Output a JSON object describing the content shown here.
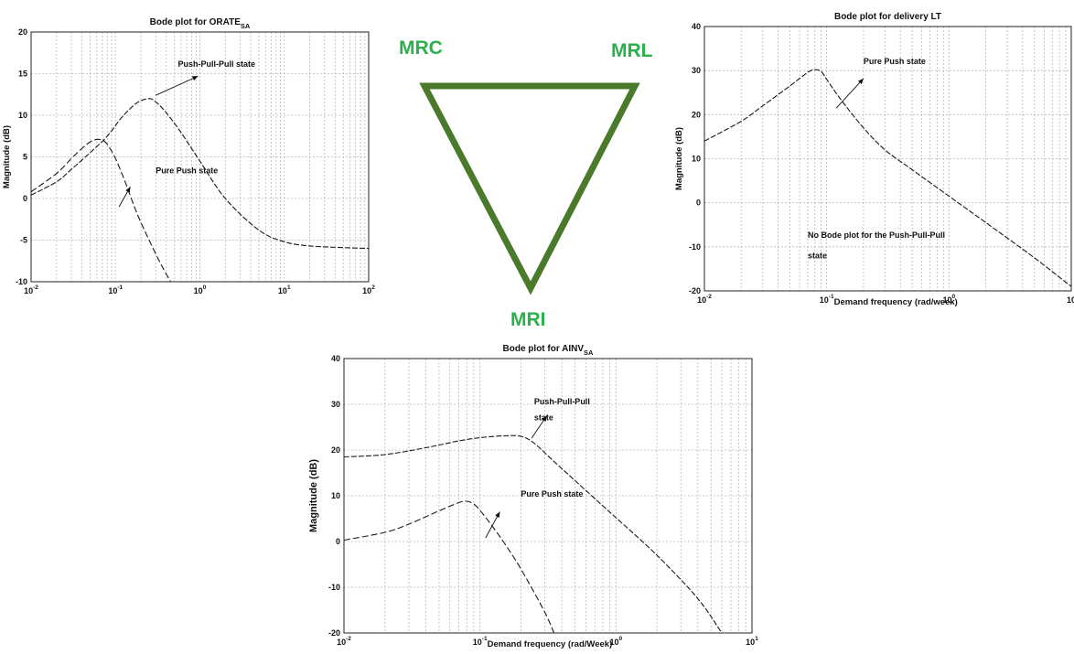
{
  "colors": {
    "triangle": "#4a7a2c",
    "label_green": "#2bb04b",
    "grid": "#b8b8b8",
    "curve": "#1a1a1a"
  },
  "labels": {
    "mrc": "MRC",
    "mrl": "MRL",
    "mri": "MRI"
  },
  "chart_data": [
    {
      "id": "orate",
      "type": "line",
      "x_scale": "log",
      "title": "Bode plot for ORATE",
      "title_sub": "SA",
      "ylabel": "Magnitude (dB)",
      "xlabel": "",
      "xlim": [
        0.01,
        100
      ],
      "ylim": [
        -10,
        20
      ],
      "yticks": [
        -10,
        -5,
        0,
        5,
        10,
        15,
        20
      ],
      "xticks": [
        {
          "base": "10",
          "exp": "-2"
        },
        {
          "base": "10",
          "exp": "-1"
        },
        {
          "base": "10",
          "exp": "0"
        },
        {
          "base": "10",
          "exp": "1"
        },
        {
          "base": "10",
          "exp": "2"
        }
      ],
      "grid": true,
      "series": [
        {
          "name": "Push-Pull-Pull state",
          "x": [
            0.01,
            0.02,
            0.03,
            0.05,
            0.08,
            0.12,
            0.18,
            0.25,
            0.3,
            0.4,
            0.6,
            1,
            2,
            5,
            10,
            20,
            50,
            100
          ],
          "y": [
            0.4,
            2,
            3.5,
            5.5,
            7.5,
            9.8,
            11.5,
            12,
            11.6,
            10.3,
            7.9,
            4.5,
            0,
            -3.8,
            -5.2,
            -5.7,
            -5.9,
            -6
          ]
        },
        {
          "name": "Pure Push state",
          "x": [
            0.01,
            0.02,
            0.03,
            0.04,
            0.05,
            0.06,
            0.07,
            0.08,
            0.1,
            0.13,
            0.18,
            0.25,
            0.35,
            0.45
          ],
          "y": [
            0.8,
            3,
            4.8,
            6,
            6.8,
            7.1,
            7,
            6.5,
            4.8,
            2,
            -1.8,
            -5,
            -8,
            -10
          ]
        }
      ],
      "annotations": [
        {
          "text": "Push-Pull-Pull state",
          "x": 0.55,
          "y": 15.8
        },
        {
          "text": "Pure Push state",
          "x": 0.3,
          "y": 3
        },
        {
          "text": "",
          "arrow_from": [
            0.3,
            12.4
          ],
          "arrow_to": [
            0.95,
            14.7
          ]
        },
        {
          "text": "",
          "arrow_from": [
            0.11,
            -1
          ],
          "arrow_to": [
            0.15,
            1.4
          ]
        }
      ]
    },
    {
      "id": "delivery",
      "type": "line",
      "x_scale": "log",
      "title": "Bode plot for delivery LT",
      "title_sub": "",
      "ylabel": "Magnitude (dB)",
      "xlabel": "Demand frequency (rad/week)",
      "xlim": [
        0.01,
        10
      ],
      "ylim": [
        -20,
        40
      ],
      "yticks": [
        -20,
        -10,
        0,
        10,
        20,
        30,
        40
      ],
      "xticks": [
        {
          "base": "10",
          "exp": "-2"
        },
        {
          "base": "10",
          "exp": "-1"
        },
        {
          "base": "10",
          "exp": "0"
        },
        {
          "base": "10",
          "exp": ""
        }
      ],
      "grid": true,
      "series": [
        {
          "name": "Pure Push state",
          "x": [
            0.01,
            0.02,
            0.03,
            0.05,
            0.07,
            0.08,
            0.09,
            0.1,
            0.13,
            0.2,
            0.3,
            0.5,
            1,
            2,
            5,
            10
          ],
          "y": [
            14,
            18.5,
            22,
            26.5,
            29.6,
            30.2,
            29.8,
            28,
            23.5,
            17,
            12,
            7.5,
            1.5,
            -4.5,
            -12.5,
            -19
          ]
        }
      ],
      "annotations": [
        {
          "text": "Pure Push state",
          "x": 0.2,
          "y": 31.5
        },
        {
          "text": "No Bode plot for the Push-Pull-Pull",
          "x": 0.07,
          "y": -8
        },
        {
          "text": "state",
          "x": 0.07,
          "y": -12.6
        },
        {
          "text": "",
          "arrow_from": [
            0.12,
            21.5
          ],
          "arrow_to": [
            0.2,
            28.2
          ]
        }
      ]
    },
    {
      "id": "ainv",
      "type": "line",
      "x_scale": "log",
      "title": "Bode plot for AINV",
      "title_sub": "SA",
      "ylabel": "Magnitude (dB)",
      "xlabel": "Demand frequency (rad/Week)",
      "xlim": [
        0.01,
        10
      ],
      "ylim": [
        -20,
        40
      ],
      "yticks": [
        -20,
        -10,
        0,
        10,
        20,
        30,
        40
      ],
      "xticks": [
        {
          "base": "10",
          "exp": "-2"
        },
        {
          "base": "10",
          "exp": "-1"
        },
        {
          "base": "10",
          "exp": "0"
        },
        {
          "base": "10",
          "exp": "1"
        }
      ],
      "grid": true,
      "series": [
        {
          "name": "Push-Pull-Pull state",
          "x": [
            0.01,
            0.02,
            0.04,
            0.07,
            0.1,
            0.15,
            0.2,
            0.25,
            0.35,
            0.5,
            0.8,
            1,
            2,
            4,
            6
          ],
          "y": [
            18.5,
            19,
            20.5,
            22,
            22.7,
            23.1,
            23,
            21.5,
            17.5,
            13.3,
            7.8,
            5.2,
            -3,
            -12.5,
            -20
          ]
        },
        {
          "name": "Pure Push state",
          "x": [
            0.01,
            0.02,
            0.03,
            0.05,
            0.07,
            0.08,
            0.09,
            0.1,
            0.12,
            0.15,
            0.2,
            0.3,
            0.35
          ],
          "y": [
            0.3,
            2,
            3.8,
            6.7,
            8.5,
            8.8,
            8.2,
            6.8,
            3.8,
            -0.2,
            -6,
            -15.5,
            -20
          ]
        }
      ],
      "annotations": [
        {
          "text": "Push-Pull-Pull",
          "x": 0.25,
          "y": 30
        },
        {
          "text": "state",
          "x": 0.25,
          "y": 26.5
        },
        {
          "text": "Pure Push state",
          "x": 0.2,
          "y": 9.8
        },
        {
          "text": "",
          "arrow_from": [
            0.24,
            22.6
          ],
          "arrow_to": [
            0.31,
            27.5
          ]
        },
        {
          "text": "",
          "arrow_from": [
            0.11,
            0.8
          ],
          "arrow_to": [
            0.14,
            6.5
          ]
        }
      ]
    }
  ]
}
